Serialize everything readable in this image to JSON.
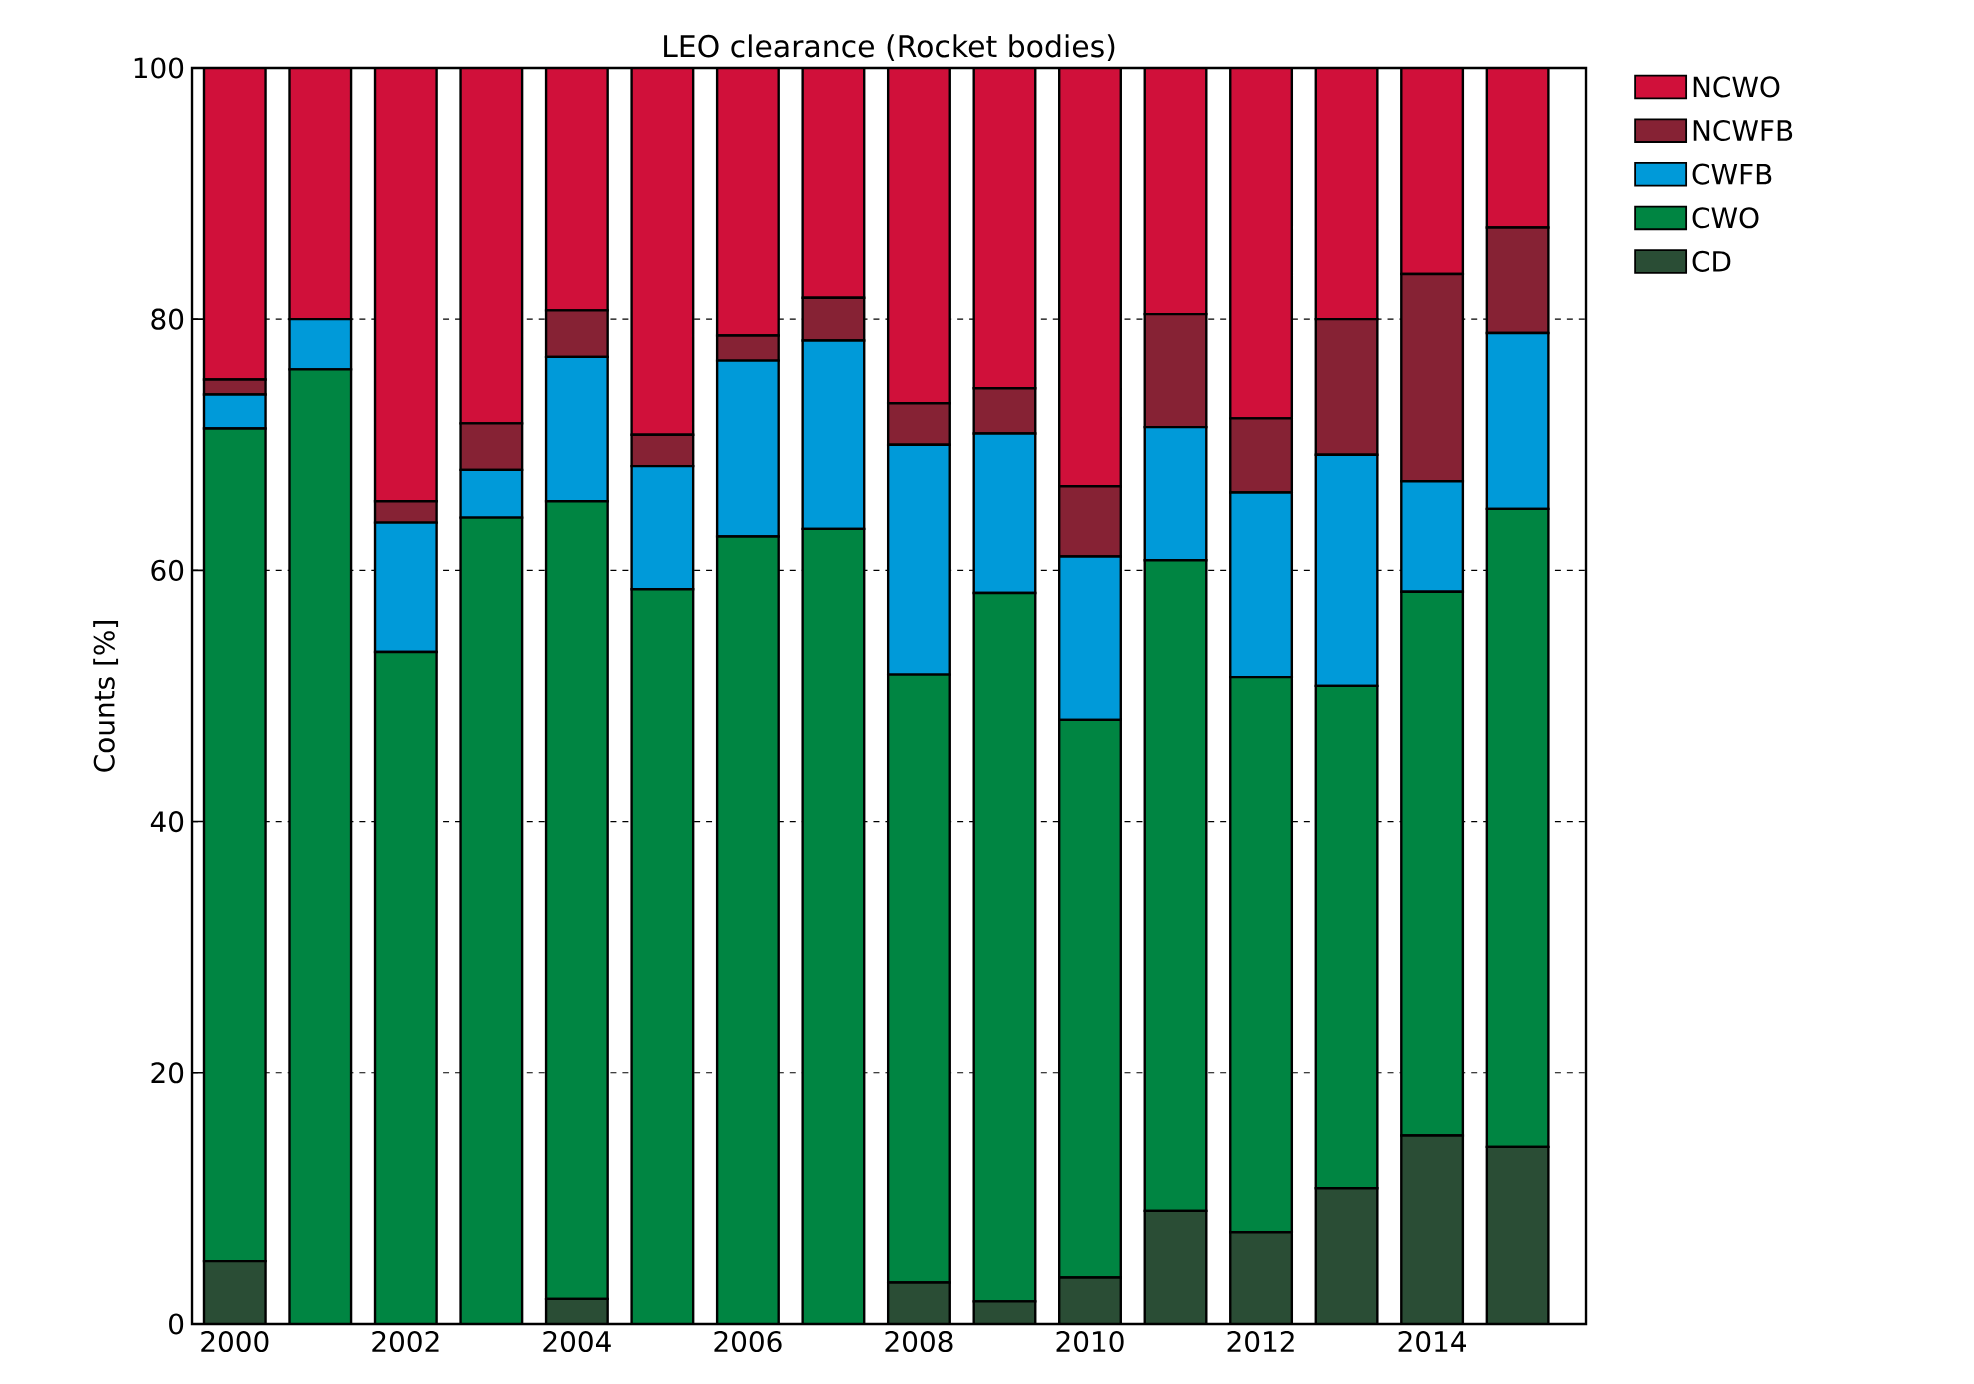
{
  "chart_data": {
    "type": "bar",
    "stacked": true,
    "title": "LEO clearance (Rocket bodies)",
    "ylabel": "Counts [%]",
    "x": [
      2000,
      2001,
      2002,
      2003,
      2004,
      2005,
      2006,
      2007,
      2008,
      2009,
      2010,
      2011,
      2012,
      2013,
      2014,
      2015
    ],
    "xlim": [
      1999.5,
      2015.8
    ],
    "xticks": [
      2000,
      2002,
      2004,
      2006,
      2008,
      2010,
      2012,
      2014
    ],
    "ylim": [
      0,
      100
    ],
    "yticks": [
      0,
      20,
      40,
      60,
      80,
      100
    ],
    "grid": "y",
    "legend": "right",
    "series": [
      {
        "name": "CD",
        "color": "#2a4d35",
        "values": [
          5,
          0,
          0,
          0,
          2,
          0,
          0,
          0,
          3.3,
          1.8,
          3.7,
          9,
          7.3,
          10.8,
          15,
          14.1
        ]
      },
      {
        "name": "CWO",
        "color": "#008542",
        "values": [
          66.3,
          76,
          53.5,
          64.2,
          63.5,
          58.5,
          62.7,
          63.3,
          48.4,
          56.4,
          44.4,
          51.8,
          44.2,
          40,
          43.3,
          50.8
        ]
      },
      {
        "name": "CWFB",
        "color": "#009ad9",
        "values": [
          2.7,
          4,
          10.3,
          3.8,
          11.5,
          9.8,
          14,
          15,
          18.3,
          12.7,
          13,
          10.6,
          14.7,
          18.4,
          8.8,
          14
        ]
      },
      {
        "name": "NCWFB",
        "color": "#862234",
        "values": [
          1.2,
          0,
          1.7,
          3.7,
          3.7,
          2.5,
          2,
          3.4,
          3.3,
          3.6,
          5.6,
          9,
          5.9,
          10.8,
          16.5,
          8.4
        ]
      },
      {
        "name": "NCWO",
        "color": "#d0103a",
        "values": [
          24.8,
          20,
          34.5,
          28.3,
          19.3,
          29.2,
          21.3,
          18.3,
          26.7,
          25.5,
          33.3,
          19.6,
          27.9,
          20,
          16.4,
          12.7
        ]
      }
    ]
  }
}
